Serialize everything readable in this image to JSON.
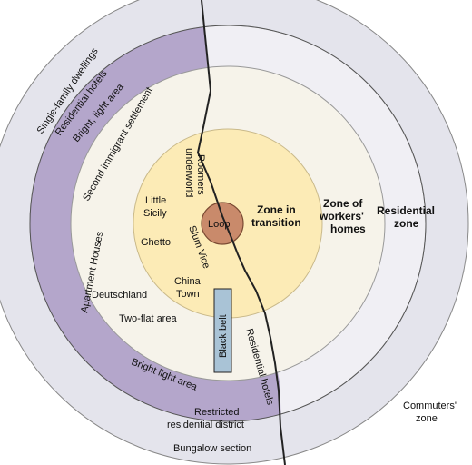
{
  "labels": {
    "single_family": "Single-family dwellings",
    "residential_hotels_left": "Residential hotels",
    "bright_light_top": "Bright, light area",
    "second_immigrant": "Second immigrant settlement",
    "apartment_houses": "Apartment Houses",
    "roomers_1": "Roomers",
    "roomers_2": "underworld",
    "little_sicily_1": "Little",
    "little_sicily_2": "Sicily",
    "ghetto": "Ghetto",
    "slum_vice": "Slum Vice",
    "loop": "Loop",
    "zone_transition_1": "Zone in",
    "zone_transition_2": "transition",
    "zone_workers_1": "Zone of",
    "zone_workers_2": "workers'",
    "zone_workers_3": "homes",
    "residential_zone_1": "Residential",
    "residential_zone_2": "zone",
    "china_town_1": "China",
    "china_town_2": "Town",
    "deutschland": "Deutschland",
    "two_flat": "Two-flat area",
    "black_belt": "Black belt",
    "residential_hotels_right": "Residential hotels",
    "bright_light_bottom": "Bright light area",
    "restricted_1": "Restricted",
    "restricted_2": "residential district",
    "bungalow": "Bungalow section",
    "commuters_1": "Commuters'",
    "commuters_2": "zone"
  },
  "colors": {
    "commuters_zone": "#e4e4ec",
    "residential_zone_left": "#b4a6cb",
    "residential_zone_right": "#f0eff4",
    "workers_zone": "#f6f3ea",
    "transition_zone": "#fcebb6",
    "loop": "#c98a6b",
    "black_belt": "#a9c3d6",
    "outline": "#222222"
  }
}
